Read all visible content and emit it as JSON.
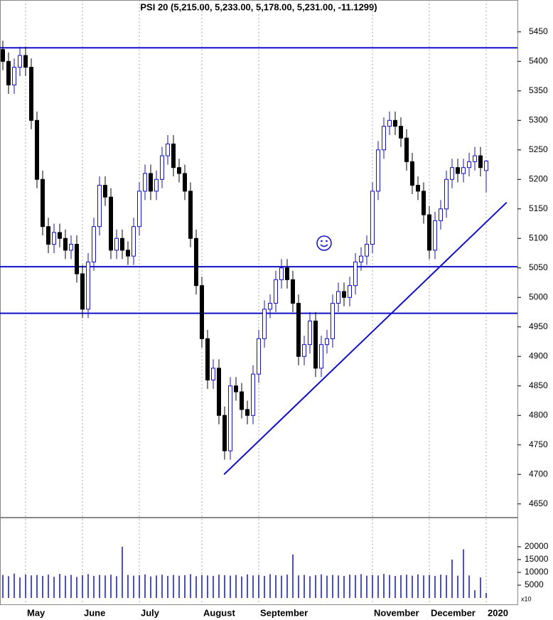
{
  "chart_data": {
    "type": "candlestick",
    "title": "PSI 20 (5,215.00, 5,233.00, 5,178.00, 5,231.00, -11.1299)",
    "categories": [
      null,
      null,
      null,
      null,
      "May",
      null,
      null,
      null,
      null,
      null,
      null,
      null,
      null,
      null,
      "June",
      null,
      null,
      null,
      null,
      null,
      null,
      null,
      null,
      null,
      "July",
      null,
      null,
      null,
      null,
      null,
      null,
      null,
      null,
      null,
      null,
      "August",
      null,
      null,
      null,
      null,
      null,
      null,
      null,
      null,
      null,
      "September",
      null,
      null,
      null,
      null,
      null,
      null,
      null,
      null,
      null,
      null,
      null,
      null,
      null,
      null,
      null,
      null,
      null,
      null,
      null,
      "November",
      null,
      null,
      null,
      null,
      null,
      null,
      null,
      null,
      null,
      "December",
      null,
      null,
      null,
      null,
      null,
      null,
      null,
      null,
      null,
      "2020"
    ],
    "open": [
      5420,
      5400,
      5360,
      5390,
      5410,
      5390,
      5300,
      5200,
      5120,
      5090,
      5110,
      5100,
      5080,
      5090,
      5040,
      4980,
      5060,
      5120,
      5190,
      5170,
      5080,
      5100,
      5080,
      5070,
      5120,
      5180,
      5210,
      5180,
      5200,
      5240,
      5260,
      5220,
      5210,
      5180,
      5100,
      5020,
      4930,
      4860,
      4880,
      4800,
      4740,
      4850,
      4840,
      4810,
      4800,
      4870,
      4930,
      4980,
      4990,
      5030,
      5050,
      5030,
      4990,
      4900,
      4920,
      4960,
      4880,
      4920,
      4930,
      4990,
      5010,
      5000,
      5020,
      5060,
      5070,
      5090,
      5180,
      5250,
      5290,
      5300,
      5290,
      5270,
      5230,
      5190,
      5180,
      5140,
      5080,
      5130,
      5150,
      5200,
      5220,
      5210,
      5220,
      5230,
      5240,
      5215
    ],
    "high": [
      5435,
      5415,
      5405,
      5425,
      5425,
      5405,
      5315,
      5215,
      5135,
      5125,
      5125,
      5115,
      5105,
      5105,
      5055,
      5075,
      5135,
      5205,
      5205,
      5185,
      5115,
      5115,
      5095,
      5135,
      5195,
      5225,
      5225,
      5215,
      5255,
      5275,
      5275,
      5235,
      5225,
      5195,
      5115,
      5035,
      4945,
      4895,
      4895,
      4815,
      4865,
      4865,
      4855,
      4825,
      4885,
      4945,
      4995,
      5005,
      5045,
      5065,
      5065,
      5045,
      5005,
      4935,
      4975,
      4975,
      4935,
      4945,
      5005,
      5025,
      5025,
      5035,
      5075,
      5085,
      5105,
      5195,
      5265,
      5305,
      5315,
      5315,
      5305,
      5285,
      5245,
      5205,
      5195,
      5155,
      5145,
      5165,
      5215,
      5235,
      5235,
      5235,
      5245,
      5255,
      5255,
      5233
    ],
    "low": [
      5385,
      5345,
      5345,
      5375,
      5375,
      5285,
      5185,
      5105,
      5075,
      5075,
      5085,
      5065,
      5065,
      5025,
      4965,
      4965,
      5045,
      5105,
      5155,
      5065,
      5065,
      5065,
      5055,
      5055,
      5105,
      5165,
      5165,
      5165,
      5185,
      5225,
      5205,
      5195,
      5165,
      5085,
      5005,
      4915,
      4845,
      4845,
      4785,
      4725,
      4725,
      4825,
      4795,
      4785,
      4785,
      4855,
      4915,
      4965,
      4975,
      5015,
      5015,
      4975,
      4885,
      4885,
      4905,
      4865,
      4865,
      4905,
      4915,
      4975,
      4985,
      4985,
      5005,
      5045,
      5055,
      5075,
      5165,
      5235,
      5275,
      5275,
      5255,
      5215,
      5175,
      5165,
      5125,
      5065,
      5065,
      5115,
      5135,
      5185,
      5195,
      5195,
      5205,
      5215,
      5205,
      5178
    ],
    "close": [
      5400,
      5360,
      5390,
      5410,
      5390,
      5300,
      5200,
      5120,
      5090,
      5110,
      5100,
      5080,
      5090,
      5040,
      4980,
      5060,
      5120,
      5190,
      5170,
      5080,
      5100,
      5080,
      5070,
      5120,
      5180,
      5210,
      5180,
      5200,
      5240,
      5260,
      5220,
      5210,
      5180,
      5100,
      5020,
      4930,
      4860,
      4880,
      4800,
      4740,
      4850,
      4840,
      4810,
      4800,
      4870,
      4930,
      4980,
      4990,
      5030,
      5050,
      5030,
      4990,
      4900,
      4920,
      4960,
      4880,
      4920,
      4930,
      4990,
      5010,
      5000,
      5020,
      5060,
      5070,
      5090,
      5180,
      5250,
      5290,
      5300,
      5290,
      5270,
      5230,
      5190,
      5180,
      5140,
      5080,
      5130,
      5150,
      5200,
      5220,
      5210,
      5220,
      5230,
      5240,
      5220,
      5231
    ],
    "volume": [
      9000,
      8500,
      9500,
      8000,
      9200,
      8800,
      9000,
      8600,
      9100,
      8300,
      9400,
      8700,
      9000,
      8200,
      8900,
      9300,
      8600,
      9000,
      8800,
      9100,
      8500,
      20000,
      9000,
      8700,
      8900,
      9200,
      8400,
      8800,
      9100,
      8600,
      9000,
      8700,
      8900,
      9300,
      8500,
      9000,
      8800,
      8600,
      9100,
      8900,
      8700,
      9000,
      8400,
      9200,
      8800,
      9000,
      8600,
      9300,
      8900,
      8700,
      9100,
      17000,
      8800,
      9000,
      8500,
      8900,
      9200,
      8700,
      9000,
      8800,
      8600,
      9100,
      8900,
      9300,
      8700,
      9000,
      8800,
      9400,
      9000,
      8600,
      8900,
      9100,
      8700,
      9200,
      8800,
      9000,
      8600,
      9100,
      8900,
      15000,
      8700,
      19000,
      8800,
      3000,
      8000,
      2000
    ],
    "ylim": [
      4628,
      5504
    ],
    "yticks": [
      4650,
      4700,
      4750,
      4800,
      4850,
      4900,
      4950,
      5000,
      5050,
      5100,
      5150,
      5200,
      5250,
      5300,
      5350,
      5400,
      5450
    ],
    "y2lim": [
      -2500,
      31100
    ],
    "y2ticks": [
      5000,
      10000,
      15000,
      20000
    ],
    "volume_unit_label": "x10",
    "hlines": [
      5423,
      5052,
      4973
    ],
    "trendline": {
      "x": [
        38.9,
        88.6
      ],
      "y": [
        4700,
        5161
      ]
    },
    "up_color": "#ffffff",
    "down_color": "#000000",
    "line_color": "#1010c8",
    "volume_color": "#1010c8"
  }
}
